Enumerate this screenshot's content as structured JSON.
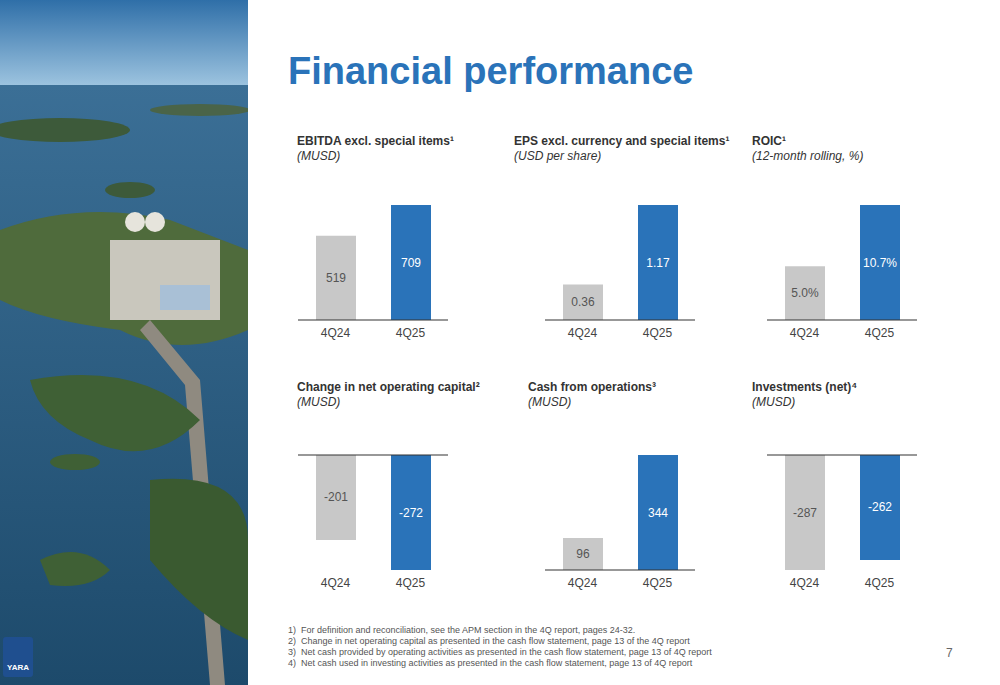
{
  "title": "Financial performance",
  "chart_data": [
    {
      "type": "bar",
      "title": "EBITDA excl. special items¹",
      "subtitle": "(MUSD)",
      "categories": [
        "4Q24",
        "4Q25"
      ],
      "values": [
        519,
        709
      ],
      "colors": [
        "#c8c8c8",
        "#2a73b9"
      ],
      "data_labels": true,
      "tick_labels": "x"
    },
    {
      "type": "bar",
      "title": "EPS excl. currency and special items¹",
      "subtitle": "(USD per share)",
      "categories": [
        "4Q24",
        "4Q25"
      ],
      "values": [
        0.36,
        1.17
      ],
      "colors": [
        "#c8c8c8",
        "#2a73b9"
      ],
      "data_labels": true,
      "tick_labels": "x"
    },
    {
      "type": "bar",
      "title": "ROIC¹",
      "subtitle": "(12-month rolling, %)",
      "categories": [
        "4Q24",
        "4Q25"
      ],
      "values": [
        5.0,
        10.7
      ],
      "value_labels": [
        "5.0%",
        "10.7%"
      ],
      "colors": [
        "#c8c8c8",
        "#2a73b9"
      ],
      "data_labels": true,
      "tick_labels": "x"
    },
    {
      "type": "bar",
      "title": "Change in net operating capital²",
      "subtitle": "(MUSD)",
      "categories": [
        "4Q24",
        "4Q25"
      ],
      "values": [
        -201,
        -272
      ],
      "colors": [
        "#c8c8c8",
        "#2a73b9"
      ],
      "data_labels": true,
      "tick_labels": "x"
    },
    {
      "type": "bar",
      "title": "Cash from operations³",
      "subtitle": "(MUSD)",
      "categories": [
        "4Q24",
        "4Q25"
      ],
      "values": [
        96,
        344
      ],
      "colors": [
        "#c8c8c8",
        "#2a73b9"
      ],
      "data_labels": true,
      "tick_labels": "x"
    },
    {
      "type": "bar",
      "title": "Investments (net)⁴",
      "subtitle": "(MUSD)",
      "categories": [
        "4Q24",
        "4Q25"
      ],
      "values": [
        -287,
        -262
      ],
      "colors": [
        "#c8c8c8",
        "#2a73b9"
      ],
      "data_labels": true,
      "tick_labels": "x"
    }
  ],
  "footnotes": [
    "1)  For definition and reconciliation, see the APM section in the 4Q report, pages 24-32.",
    "2)  Change in net operating capital as presented in the cash flow statement, page 13 of the 4Q report",
    "3)  Net cash provided by operating activities as presented in the cash flow statement, page 13 of 4Q report",
    "4)  Net cash used in investing activities as presented in the cash flow statement, page 13 of 4Q report"
  ],
  "page": "7",
  "logo": "YARA"
}
